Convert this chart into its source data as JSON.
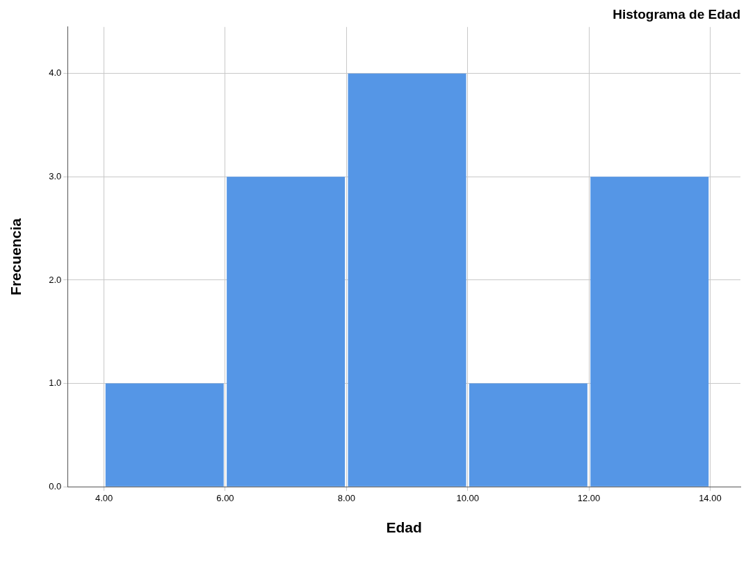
{
  "chart_data": {
    "type": "histogram",
    "title": "Histograma de Edad",
    "xlabel": "Edad",
    "ylabel": "Frecuencia",
    "bins": [
      4,
      6,
      8,
      10,
      12,
      14
    ],
    "values": [
      1,
      3,
      4,
      1,
      3
    ],
    "color": "#5596e6",
    "xlim": [
      3.4,
      14.5
    ],
    "ylim": [
      0,
      4.45
    ],
    "xticks": [
      {
        "value": 4,
        "label": "4.00"
      },
      {
        "value": 6,
        "label": "6.00"
      },
      {
        "value": 8,
        "label": "8.00"
      },
      {
        "value": 10,
        "label": "10.00"
      },
      {
        "value": 12,
        "label": "12.00"
      },
      {
        "value": 14,
        "label": "14.00"
      }
    ],
    "yticks": [
      {
        "value": 0,
        "label": "0.0"
      },
      {
        "value": 1,
        "label": "1.0"
      },
      {
        "value": 2,
        "label": "2.0"
      },
      {
        "value": 3,
        "label": "3.0"
      },
      {
        "value": 4,
        "label": "4.0"
      }
    ],
    "grid": true
  }
}
